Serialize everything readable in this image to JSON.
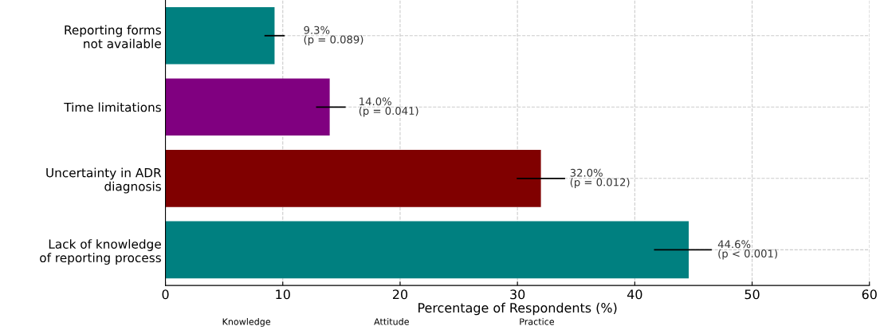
{
  "chart_data": {
    "type": "bar",
    "orientation": "horizontal",
    "categories": [
      "Reporting forms\nnot available",
      "Time limitations",
      "Uncertainty in ADR\ndiagnosis",
      "Lack of knowledge\nof reporting process"
    ],
    "values": [
      9.3,
      14.0,
      32.0,
      44.6
    ],
    "colors": [
      "#008080",
      "#800080",
      "#800000",
      "#008080"
    ],
    "errors": [
      [
        8.5,
        10.1
      ],
      [
        12.9,
        15.3
      ],
      [
        30.0,
        34.0
      ],
      [
        41.7,
        46.5
      ]
    ],
    "value_labels": [
      "9.3%\n(p = 0.089)",
      "14.0%\n(p = 0.041)",
      "32.0%\n(p = 0.012)",
      "44.6%\n(p < 0.001)"
    ],
    "xlabel": "Percentage of Respondents (%)",
    "xlim": [
      0,
      60
    ],
    "xticks": [
      0,
      10,
      20,
      30,
      40,
      50,
      60
    ],
    "grid": true,
    "annotations": [
      "Knowledge",
      "Attitude",
      "Practice"
    ]
  }
}
